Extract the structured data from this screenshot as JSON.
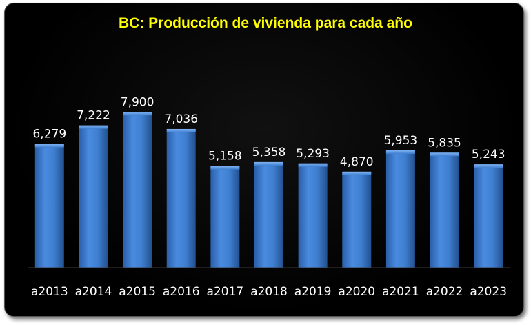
{
  "chart_data": {
    "type": "bar",
    "title": "BC: Producción de vivienda para cada año",
    "categories": [
      "a2013",
      "a2014",
      "a2015",
      "a2016",
      "a2017",
      "a2018",
      "a2019",
      "a2020",
      "a2021",
      "a2022",
      "a2023"
    ],
    "values": [
      6279,
      7222,
      7900,
      7036,
      5158,
      5358,
      5293,
      4870,
      5953,
      5835,
      5243
    ],
    "value_labels": [
      "6,279",
      "7,222",
      "7,900",
      "7,036",
      "5,158",
      "5,358",
      "5,293",
      "4,870",
      "5,953",
      "5,835",
      "5,243"
    ],
    "xlabel": "",
    "ylabel": "",
    "ylim": [
      0,
      10500
    ],
    "grid": false,
    "legend": "none",
    "bar_color": "#3f7fd0",
    "title_color": "#ffff00",
    "background_color": "#000000"
  }
}
